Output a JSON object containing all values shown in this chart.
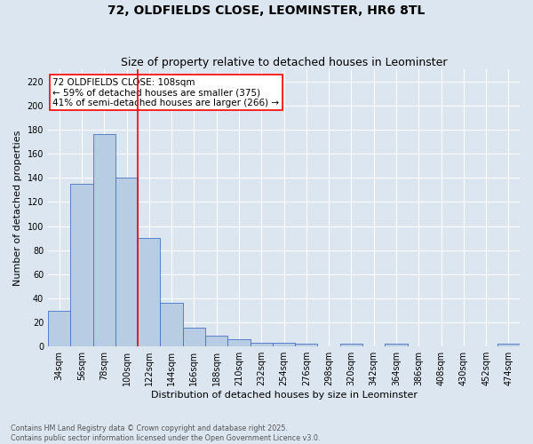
{
  "title": "72, OLDFIELDS CLOSE, LEOMINSTER, HR6 8TL",
  "subtitle": "Size of property relative to detached houses in Leominster",
  "xlabel": "Distribution of detached houses by size in Leominster",
  "ylabel": "Number of detached properties",
  "categories": [
    "34sqm",
    "56sqm",
    "78sqm",
    "100sqm",
    "122sqm",
    "144sqm",
    "166sqm",
    "188sqm",
    "210sqm",
    "232sqm",
    "254sqm",
    "276sqm",
    "298sqm",
    "320sqm",
    "342sqm",
    "364sqm",
    "386sqm",
    "408sqm",
    "430sqm",
    "452sqm",
    "474sqm"
  ],
  "values": [
    30,
    135,
    176,
    140,
    90,
    36,
    16,
    9,
    6,
    3,
    3,
    2,
    0,
    2,
    0,
    2,
    0,
    0,
    0,
    0,
    2
  ],
  "bar_color": "#b8cce4",
  "bar_edge_color": "#4472c4",
  "background_color": "#dce6f1",
  "plot_bg_color": "#dce6f1",
  "vline_x_index": 3.5,
  "vline_color": "red",
  "annotation_text": "72 OLDFIELDS CLOSE: 108sqm\n← 59% of detached houses are smaller (375)\n41% of semi-detached houses are larger (266) →",
  "annotation_box_color": "white",
  "annotation_box_edge": "red",
  "ylim": [
    0,
    230
  ],
  "yticks": [
    0,
    20,
    40,
    60,
    80,
    100,
    120,
    140,
    160,
    180,
    200,
    220
  ],
  "footnote": "Contains HM Land Registry data © Crown copyright and database right 2025.\nContains public sector information licensed under the Open Government Licence v3.0.",
  "title_fontsize": 10,
  "subtitle_fontsize": 9,
  "label_fontsize": 8,
  "tick_fontsize": 7,
  "annot_fontsize": 7.5
}
